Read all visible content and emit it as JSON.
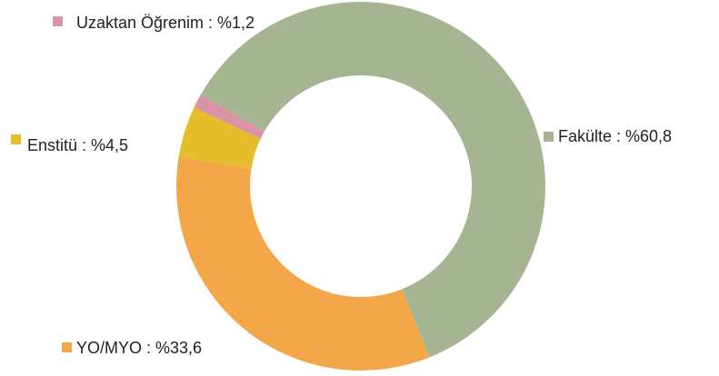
{
  "chart_data": {
    "type": "donut",
    "values": [
      60.8,
      33.6,
      4.5,
      1.2
    ],
    "value_labels": [
      "Fakülte : %60,8",
      "YO/MYO : %33,6",
      "Enstitü : %4,5",
      "Uzaktan Öğrenim : %1,2"
    ],
    "colors": [
      "#a5b592",
      "#f4a749",
      "#e6be2c",
      "#d993a5"
    ]
  }
}
